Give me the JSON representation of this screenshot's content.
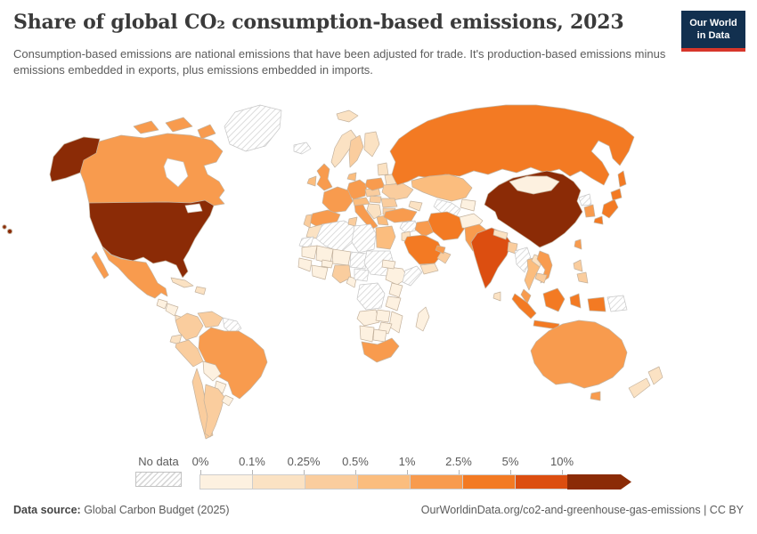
{
  "header": {
    "title": "Share of global CO₂ consumption-based emissions, 2023",
    "subtitle": "Consumption-based emissions are national emissions that have been adjusted for trade. It's production-based emissions minus emissions embedded in exports, plus emissions embedded in imports.",
    "logo": {
      "line1": "Our World",
      "line2": "in Data",
      "bg_color": "#12304f",
      "accent_color": "#d7362a"
    }
  },
  "legend": {
    "no_data_label": "No data",
    "bins": [
      {
        "label": "0%",
        "color": "#FDF1E0"
      },
      {
        "label": "0.1%",
        "color": "#FBE2C3"
      },
      {
        "label": "0.25%",
        "color": "#FACD9E"
      },
      {
        "label": "0.5%",
        "color": "#FBBD7E"
      },
      {
        "label": "1%",
        "color": "#F89B4E"
      },
      {
        "label": "2.5%",
        "color": "#F37A23"
      },
      {
        "label": "5%",
        "color": "#DC4E10"
      },
      {
        "label": "10%",
        "color": "#8B2B06"
      }
    ]
  },
  "footer": {
    "source_label": "Data source:",
    "source_value": " Global Carbon Budget (2025)",
    "credit": "OurWorldinData.org/co2-and-greenhouse-gas-emissions | CC BY"
  },
  "chart_data": {
    "type": "choropleth",
    "title": "Share of global CO₂ consumption-based emissions, 2023",
    "unit": "% of global consumption-based CO₂ emissions",
    "bin_ranges": [
      "0–0.1%",
      "0.1–0.25%",
      "0.25–0.5%",
      "0.5–1%",
      "1–2.5%",
      "2.5–5%",
      "5–10%",
      "10%+"
    ],
    "no_data_bin": 0,
    "countries": {
      "united-states": 8,
      "canada": 5,
      "greenland": 0,
      "mexico": 5,
      "guatemala": 1,
      "honduras-nicaragua": 1,
      "costa-rica-panama": 2,
      "cuba": 2,
      "hispaniola": 2,
      "colombia": 3,
      "venezuela": 3,
      "guyana-suriname": 0,
      "ecuador": 2,
      "peru": 3,
      "brazil": 5,
      "bolivia": 1,
      "paraguay": 1,
      "chile": 3,
      "argentina": 3,
      "uruguay": 1,
      "iceland": 0,
      "svalbard": 2,
      "united-kingdom": 5,
      "ireland": 4,
      "norway": 2,
      "sweden": 3,
      "finland": 2,
      "denmark": 4,
      "germany": 5,
      "france": 5,
      "spain": 5,
      "portugal": 3,
      "italy": 5,
      "switzerland-austria": 4,
      "czechia-slovakia": 3,
      "poland": 5,
      "baltics": 2,
      "belarus": 2,
      "ukraine": 3,
      "romania": 3,
      "hungary": 3,
      "balkans": 2,
      "bulgaria": 3,
      "greece": 4,
      "russia": 6,
      "kazakhstan": 4,
      "turkmenistan-uzbekistan": 0,
      "kyrgyzstan-tajikistan": 1,
      "caucasus": 2,
      "turkey": 5,
      "syria": 0,
      "israel-jordan": 2,
      "iraq": 5,
      "iran": 6,
      "saudi-arabia": 6,
      "yemen": 2,
      "oman": 3,
      "uae-qatar": 5,
      "afghanistan": 1,
      "pakistan": 5,
      "morocco": 2,
      "western-sahara": 0,
      "algeria": 0,
      "tunisia": 3,
      "libya": 0,
      "egypt": 4,
      "mauritania": 1,
      "mali": 1,
      "niger": 1,
      "chad": 0,
      "sudan": 0,
      "senegal-guinea": 1,
      "ivory-coast-ghana": 1,
      "burkina-faso": 1,
      "nigeria": 3,
      "cameroon": 1,
      "central-african-republic": 0,
      "ethiopia": 1,
      "eritrea-djibouti": 1,
      "somalia": 0,
      "dr-congo": 0,
      "kenya": 1,
      "tanzania": 1,
      "angola": 1,
      "zambia": 1,
      "mozambique": 1,
      "zimbabwe": 1,
      "namibia": 1,
      "botswana": 1,
      "south-africa": 5,
      "madagascar": 1,
      "india": 7,
      "sri-lanka": 2,
      "nepal": 2,
      "bangladesh": 3,
      "china": 8,
      "mongolia": 1,
      "taiwan": 5,
      "north-korea": 0,
      "south-korea": 5,
      "japan": 6,
      "myanmar": 0,
      "thailand": 4,
      "laos": 2,
      "vietnam": 5,
      "cambodia": 3,
      "malaysia": 5,
      "philippines": 3,
      "indonesia": 6,
      "papua-new-guinea": 0,
      "australia": 5,
      "new-zealand": 2
    }
  }
}
